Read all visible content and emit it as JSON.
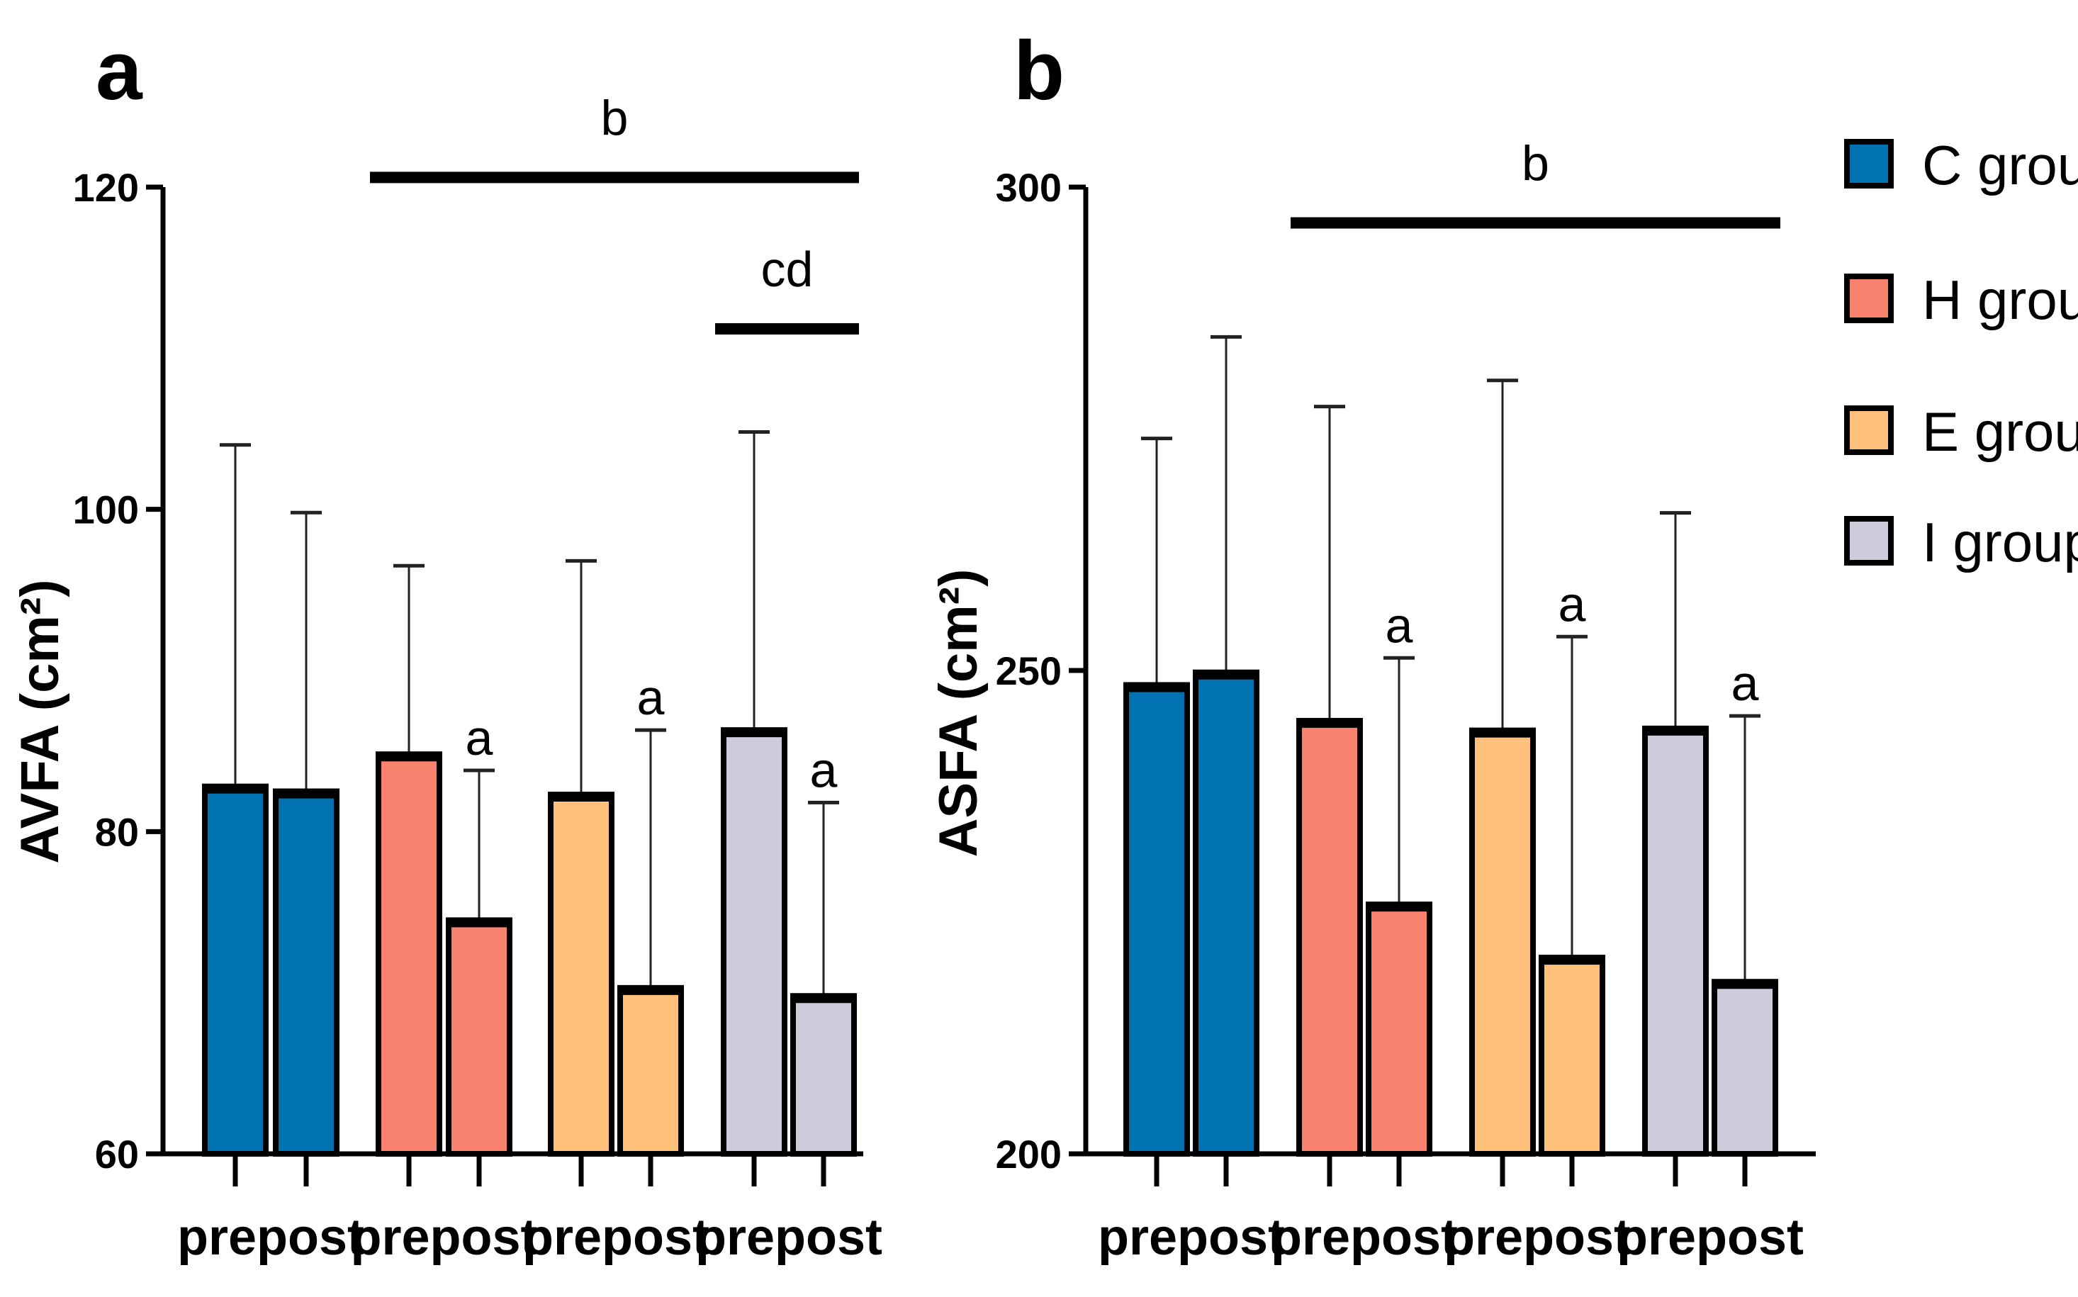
{
  "legend": [
    {
      "label": "C group",
      "color": "#0072B2"
    },
    {
      "label": "H group",
      "color": "#F8826E"
    },
    {
      "label": "E group",
      "color": "#FEC07A"
    },
    {
      "label": "I group",
      "color": "#CFCADC"
    }
  ],
  "chart_data": [
    {
      "type": "bar",
      "panel": "a",
      "ylabel": "AVFA (cm²)",
      "ylim": [
        60,
        120
      ],
      "yticks": [
        60,
        80,
        100,
        120
      ],
      "categories": [
        "pre",
        "post",
        "pre",
        "post",
        "pre",
        "post",
        "pre",
        "post"
      ],
      "groups": [
        "C group",
        "C group",
        "H group",
        "H group",
        "E group",
        "E group",
        "I group",
        "I group"
      ],
      "values": [
        82.8,
        82.5,
        84.8,
        74.5,
        82.3,
        70.3,
        86.3,
        69.8
      ],
      "error_upper": [
        104.0,
        99.8,
        96.5,
        83.8,
        96.8,
        86.3,
        104.8,
        81.8
      ],
      "bar_labels": [
        "",
        "",
        "",
        "a",
        "",
        "a",
        "",
        "a"
      ],
      "brackets": [
        {
          "label": "b",
          "from_bar": 2,
          "to_bar": 7,
          "y": 120.6
        },
        {
          "label": "cd",
          "from_bar": 6,
          "to_bar": 7,
          "y": 111.2
        }
      ]
    },
    {
      "type": "bar",
      "panel": "b",
      "ylabel": "ASFA (cm²)",
      "ylim": [
        200,
        300
      ],
      "yticks": [
        200,
        250,
        300
      ],
      "categories": [
        "pre",
        "post",
        "pre",
        "post",
        "pre",
        "post",
        "pre",
        "post"
      ],
      "groups": [
        "C group",
        "C group",
        "H group",
        "H group",
        "E group",
        "E group",
        "I group",
        "I group"
      ],
      "values": [
        248.5,
        249.8,
        244.8,
        225.8,
        243.8,
        220.3,
        244.0,
        217.8
      ],
      "error_upper": [
        274.0,
        284.5,
        277.3,
        251.3,
        280.0,
        253.5,
        266.3,
        245.3
      ],
      "bar_labels": [
        "",
        "",
        "",
        "a",
        "",
        "a",
        "",
        "a"
      ],
      "brackets": [
        {
          "label": "b",
          "from_bar": 2,
          "to_bar": 7,
          "y": 296.3
        }
      ]
    }
  ]
}
